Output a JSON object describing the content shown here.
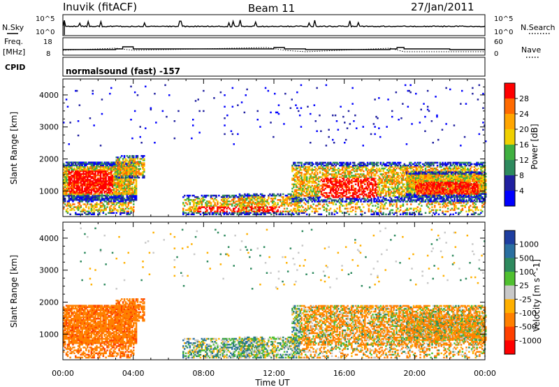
{
  "header": {
    "station": "Inuvik (fitACF)",
    "beam": "Beam 11",
    "date": "27/Jan/2011"
  },
  "panels": {
    "nsky": {
      "label": "N.Sky",
      "tick_top": "10^5",
      "tick_bottom": "10^0",
      "right_label": "N.Search",
      "right_tick_top": "10^5",
      "right_tick_bottom": "10^0"
    },
    "freq": {
      "label_line1": "Freq.",
      "label_line2": "[MHz]",
      "tick_top": "18",
      "tick_bottom": "8",
      "right_label": "Nave",
      "right_tick_top": "60",
      "right_tick_bottom": "0"
    },
    "cpid": {
      "label": "CPID",
      "value": "normalsound (fast) -157"
    }
  },
  "chart_data": [
    {
      "type": "heatmap",
      "name": "power",
      "ylabel": "Slant Range [km]",
      "yticks": [
        "4000",
        "3000",
        "2000",
        "1000"
      ],
      "ylim": [
        200,
        4500
      ],
      "xlim": [
        "00:00",
        "24:00"
      ],
      "colorbar": {
        "label": "Power [dB]",
        "ticks": [
          "28",
          "24",
          "20",
          "16",
          "12",
          "8",
          "4"
        ],
        "colors": [
          "#ff0000",
          "#ff6a00",
          "#ffa500",
          "#f0d000",
          "#40b040",
          "#2e8a5e",
          "#2020a0",
          "#0000ff"
        ]
      }
    },
    {
      "type": "heatmap",
      "name": "velocity",
      "ylabel": "Slant Range [km]",
      "yticks": [
        "4000",
        "3000",
        "2000",
        "1000"
      ],
      "ylim": [
        200,
        4500
      ],
      "xlim": [
        "00:00",
        "24:00"
      ],
      "xticks": [
        "00:00",
        "04:00",
        "08:00",
        "12:00",
        "16:00",
        "20:00",
        "00:00"
      ],
      "xlabel": "Time UT",
      "colorbar": {
        "label": "Velocity [m s^-1]",
        "ticks": [
          "1000",
          "500",
          "100",
          "25",
          "-25",
          "-100",
          "-500",
          "-1000"
        ],
        "colors": [
          "#1e3ea0",
          "#2a6fa0",
          "#2e8a5e",
          "#50c030",
          "#c8c8c8",
          "#ffb000",
          "#ff8000",
          "#ff4000",
          "#ff0000"
        ]
      }
    }
  ]
}
